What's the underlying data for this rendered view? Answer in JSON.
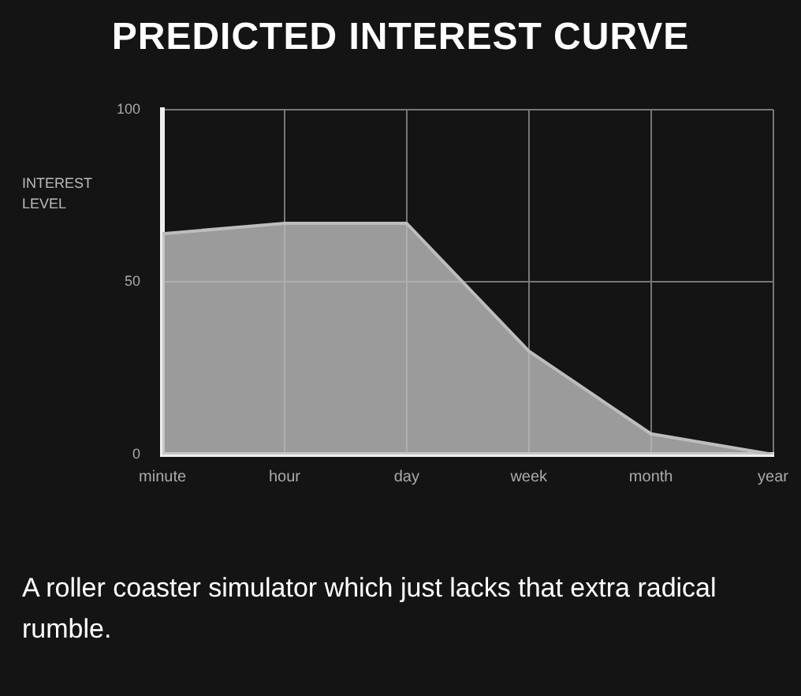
{
  "chart_data": {
    "type": "area",
    "title": "PREDICTED INTEREST CURVE",
    "ylabel": "INTEREST LEVEL",
    "categories": [
      "minute",
      "hour",
      "day",
      "week",
      "month",
      "year"
    ],
    "values": [
      64,
      67,
      67,
      30,
      6,
      0
    ],
    "color": "#bdbdbd",
    "ylim": [
      0,
      100
    ],
    "yticks": [
      0,
      50,
      100
    ],
    "grid": true,
    "annotations": [
      "A roller coaster simulator which just lacks that extra radical rumble."
    ]
  }
}
